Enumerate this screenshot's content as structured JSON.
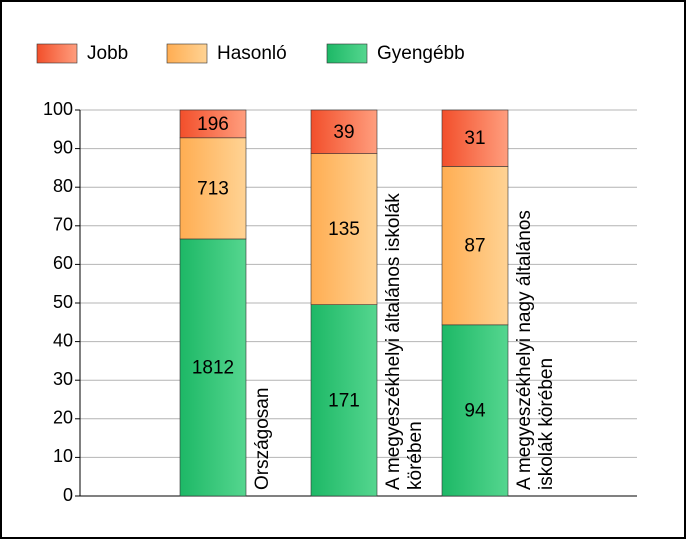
{
  "chart_data": {
    "type": "bar",
    "stacked": "percent",
    "categories": [
      "Országosan",
      "A megyeszékhelyi általános iskolák körében",
      "A megyeszékhelyi nagy általános iskolák körében"
    ],
    "series": [
      {
        "name": "Gyengébb",
        "color": [
          "#1db866",
          "#55d68f"
        ],
        "values": [
          1812,
          171,
          94
        ]
      },
      {
        "name": "Hasonló",
        "color": [
          "#ffad52",
          "#ffd394"
        ],
        "values": [
          713,
          135,
          87
        ]
      },
      {
        "name": "Jobb",
        "color": [
          "#f24f2b",
          "#ff9e7e"
        ],
        "values": [
          196,
          39,
          31
        ]
      }
    ],
    "legend_order": [
      2,
      1,
      0
    ],
    "legend": "top-left",
    "ylim": [
      0,
      100
    ],
    "yticks": [
      0,
      10,
      20,
      30,
      40,
      50,
      60,
      70,
      80,
      90,
      100
    ],
    "grid": true
  }
}
